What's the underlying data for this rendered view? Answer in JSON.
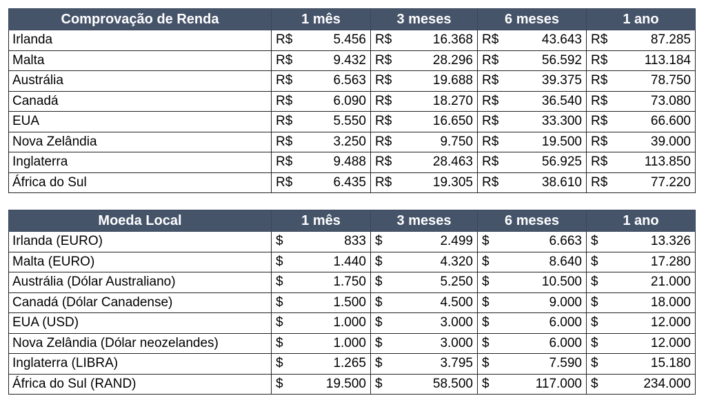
{
  "tables": [
    {
      "header": [
        "Comprovação de Renda",
        "1 mês",
        "3 meses",
        "6 meses",
        "1 ano"
      ],
      "currency": "R$",
      "rows": [
        {
          "name": "Irlanda",
          "values": [
            "5.456",
            "16.368",
            "43.643",
            "87.285"
          ]
        },
        {
          "name": "Malta",
          "values": [
            "9.432",
            "28.296",
            "56.592",
            "113.184"
          ]
        },
        {
          "name": "Austrália",
          "values": [
            "6.563",
            "19.688",
            "39.375",
            "78.750"
          ]
        },
        {
          "name": "Canadá",
          "values": [
            "6.090",
            "18.270",
            "36.540",
            "73.080"
          ]
        },
        {
          "name": "EUA",
          "values": [
            "5.550",
            "16.650",
            "33.300",
            "66.600"
          ]
        },
        {
          "name": "Nova Zelândia",
          "values": [
            "3.250",
            "9.750",
            "19.500",
            "39.000"
          ]
        },
        {
          "name": "Inglaterra",
          "values": [
            "9.488",
            "28.463",
            "56.925",
            "113.850"
          ]
        },
        {
          "name": "África do Sul",
          "values": [
            "6.435",
            "19.305",
            "38.610",
            "77.220"
          ]
        }
      ]
    },
    {
      "header": [
        "Moeda Local",
        "1 mês",
        "3 meses",
        "6 meses",
        "1 ano"
      ],
      "currency": "$",
      "rows": [
        {
          "name": "Irlanda (EURO)",
          "values": [
            "833",
            "2.499",
            "6.663",
            "13.326"
          ]
        },
        {
          "name": "Malta (EURO)",
          "values": [
            "1.440",
            "4.320",
            "8.640",
            "17.280"
          ]
        },
        {
          "name": "Austrália (Dólar Australiano)",
          "values": [
            "1.750",
            "5.250",
            "10.500",
            "21.000"
          ]
        },
        {
          "name": "Canadá (Dólar Canadense)",
          "values": [
            "1.500",
            "4.500",
            "9.000",
            "18.000"
          ]
        },
        {
          "name": "EUA (USD)",
          "values": [
            "1.000",
            "3.000",
            "6.000",
            "12.000"
          ]
        },
        {
          "name": "Nova Zelândia (Dólar neozelandes)",
          "values": [
            "1.000",
            "3.000",
            "6.000",
            "12.000"
          ]
        },
        {
          "name": "Inglaterra (LIBRA)",
          "values": [
            "1.265",
            "3.795",
            "7.590",
            "15.180"
          ]
        },
        {
          "name": "África do Sul (RAND)",
          "values": [
            "19.500",
            "58.500",
            "117.000",
            "234.000"
          ]
        }
      ]
    }
  ],
  "colors": {
    "header_bg": "#46546a",
    "header_text": "#ffffff",
    "border": "#222222"
  }
}
